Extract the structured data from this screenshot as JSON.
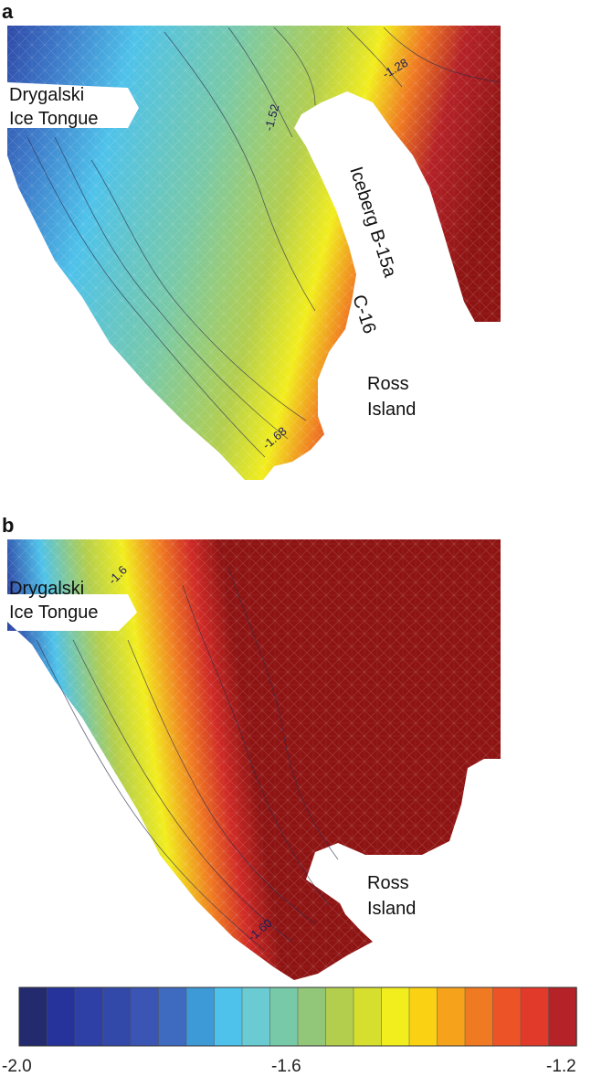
{
  "panels": [
    {
      "letter": "a",
      "labels": {
        "drygalski_line1": "Drygalski",
        "drygalski_line2": "Ice Tongue",
        "iceberg": "Iceberg B-15a",
        "c16": "C-16",
        "ross_line1": "Ross",
        "ross_line2": "Island"
      },
      "contour_labels": [
        "-1.52",
        "-1.28",
        "-1.68"
      ]
    },
    {
      "letter": "b",
      "labels": {
        "drygalski_line1": "Drygalski",
        "drygalski_line2": "Ice Tongue",
        "ross_line1": "Ross",
        "ross_line2": "Island"
      },
      "contour_labels": [
        "-1.6",
        "-1.60"
      ]
    }
  ],
  "colorbar": {
    "min": -2.0,
    "max": -1.2,
    "tick_labels": [
      "-2.0",
      "-1.6",
      "-1.2"
    ],
    "colors": [
      "#232a6e",
      "#25339a",
      "#2e3fa5",
      "#3349aa",
      "#3a55b3",
      "#3e6bc0",
      "#3e9ad6",
      "#4ec2ea",
      "#6acbd2",
      "#78c9a8",
      "#92c77a",
      "#b3ce4d",
      "#d6df2e",
      "#f2ed1c",
      "#fbd114",
      "#f6a31b",
      "#f07a22",
      "#ec5428",
      "#e23a2a",
      "#b52227"
    ]
  }
}
